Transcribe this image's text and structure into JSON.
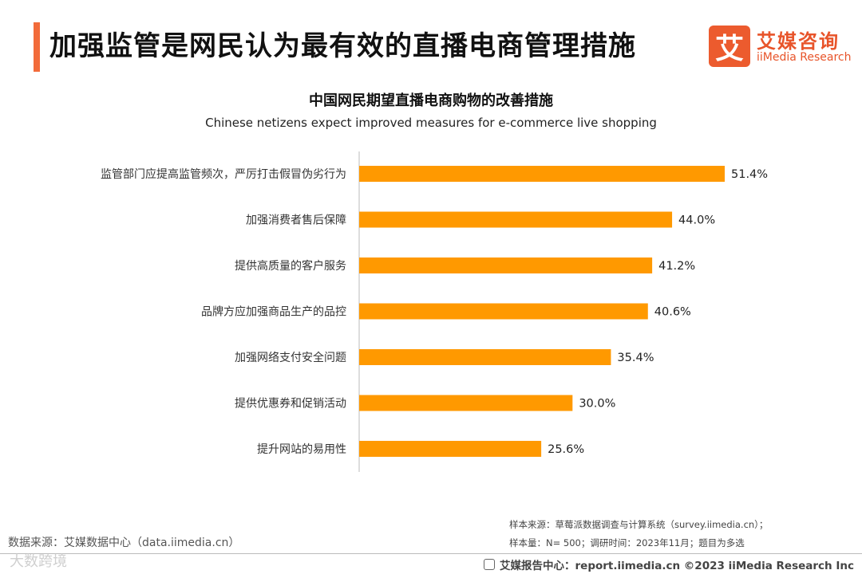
{
  "header": {
    "title": "加强监管是网民认为最有效的直播电商管理措施",
    "accent_color": "#f26b3a"
  },
  "logo": {
    "mark": "艾",
    "name_cn": "艾媒咨询",
    "name_en": "iiMedia Research",
    "color": "#e8542a"
  },
  "chart_data": {
    "type": "bar",
    "orientation": "horizontal",
    "title": "中国网民期望直播电商购物的改善措施",
    "subtitle": "Chinese netizens expect improved measures for e-commerce live shopping",
    "categories": [
      "监管部门应提高监管频次，严厉打击假冒伪劣行为",
      "加强消费者售后保障",
      "提供高质量的客户服务",
      "品牌方应加强商品生产的品控",
      "加强网络支付安全问题",
      "提供优惠券和促销活动",
      "提升网站的易用性"
    ],
    "values": [
      51.4,
      44.0,
      41.2,
      40.6,
      35.4,
      30.0,
      25.6
    ],
    "value_labels": [
      "51.4%",
      "44.0%",
      "41.2%",
      "40.6%",
      "35.4%",
      "30.0%",
      "25.6%"
    ],
    "unit": "%",
    "xlim": [
      0,
      51.4
    ],
    "bar_color": "#ff9900",
    "grid": false
  },
  "footer": {
    "source": "数据来源：艾媒数据中心（data.iimedia.cn）",
    "sample_source": "样本来源：草莓派数据调查与计算系统（survey.iimedia.cn）；",
    "sample_info": "样本量：N= 500；调研时间：2023年11月；题目为多选",
    "report_center": "艾媒报告中心：report.iimedia.cn   ©2023  iiMedia Research  Inc",
    "watermark": "大数跨境"
  }
}
